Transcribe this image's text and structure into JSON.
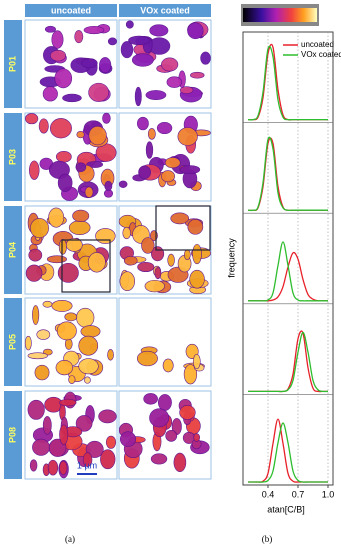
{
  "panel_a": {
    "columns": [
      "uncoated",
      "VOx coated"
    ],
    "rows": [
      "P01",
      "P03",
      "P04",
      "P05",
      "P08"
    ],
    "scale_bar": "1 µm",
    "label": "(a)"
  },
  "panel_b_label": "(b)",
  "chart_data": {
    "type": "line",
    "x_label": "atan[C/B]",
    "y_label": "frequency",
    "x": [
      0.2,
      0.25,
      0.3,
      0.35,
      0.4,
      0.45,
      0.5,
      0.55,
      0.6,
      0.65,
      0.7,
      0.75,
      0.8,
      0.85,
      0.9,
      0.95,
      1.0
    ],
    "xlim": [
      0.15,
      1.05
    ],
    "xticks": [
      0.4,
      0.7,
      {
        "value": 1,
        "label": "1.0"
      }
    ],
    "ylim": [
      0,
      1
    ],
    "grid": true,
    "legend": [
      {
        "name": "uncoated",
        "color": "#e8202a"
      },
      {
        "name": "VOx coated",
        "color": "#2ebd2e"
      }
    ],
    "panels": [
      {
        "series": [
          {
            "color": "#e8202a",
            "values": [
              0,
              0,
              0.03,
              0.28,
              0.84,
              0.92,
              0.38,
              0.06,
              0,
              0,
              0,
              0,
              0,
              0,
              0,
              0,
              0
            ]
          },
          {
            "color": "#2ebd2e",
            "values": [
              0,
              0,
              0.05,
              0.35,
              0.9,
              0.8,
              0.25,
              0.03,
              0,
              0,
              0,
              0,
              0,
              0,
              0,
              0,
              0
            ]
          }
        ]
      },
      {
        "series": [
          {
            "color": "#e8202a",
            "values": [
              0,
              0,
              0.03,
              0.3,
              0.85,
              0.85,
              0.3,
              0.04,
              0,
              0,
              0,
              0,
              0,
              0,
              0,
              0,
              0
            ]
          },
          {
            "color": "#2ebd2e",
            "values": [
              0,
              0,
              0.04,
              0.35,
              0.9,
              0.78,
              0.22,
              0.03,
              0,
              0,
              0,
              0,
              0,
              0,
              0,
              0,
              0
            ]
          }
        ]
      },
      {
        "series": [
          {
            "color": "#e8202a",
            "values": [
              0,
              0,
              0,
              0,
              0,
              0.01,
              0.05,
              0.18,
              0.43,
              0.61,
              0.53,
              0.27,
              0.08,
              0.02,
              0,
              0,
              0
            ]
          },
          {
            "color": "#2ebd2e",
            "values": [
              0,
              0,
              0,
              0,
              0.01,
              0.1,
              0.45,
              0.75,
              0.45,
              0.1,
              0.01,
              0,
              0,
              0,
              0,
              0,
              0
            ]
          }
        ]
      },
      {
        "series": [
          {
            "color": "#e8202a",
            "values": [
              0,
              0,
              0,
              0,
              0,
              0,
              0,
              0,
              0.03,
              0.22,
              0.67,
              0.74,
              0.3,
              0.04,
              0,
              0,
              0
            ]
          },
          {
            "color": "#2ebd2e",
            "values": [
              0,
              0,
              0,
              0,
              0,
              0,
              0,
              0,
              0.02,
              0.14,
              0.5,
              0.75,
              0.5,
              0.14,
              0.02,
              0,
              0
            ]
          }
        ]
      },
      {
        "series": [
          {
            "color": "#e8202a",
            "values": [
              0,
              0,
              0,
              0.01,
              0.11,
              0.49,
              0.8,
              0.49,
              0.11,
              0.01,
              0,
              0,
              0,
              0,
              0,
              0,
              0
            ]
          },
          {
            "color": "#2ebd2e",
            "values": [
              0,
              0,
              0,
              0,
              0.02,
              0.14,
              0.5,
              0.75,
              0.5,
              0.14,
              0.02,
              0,
              0,
              0,
              0,
              0,
              0
            ]
          }
        ]
      }
    ]
  }
}
